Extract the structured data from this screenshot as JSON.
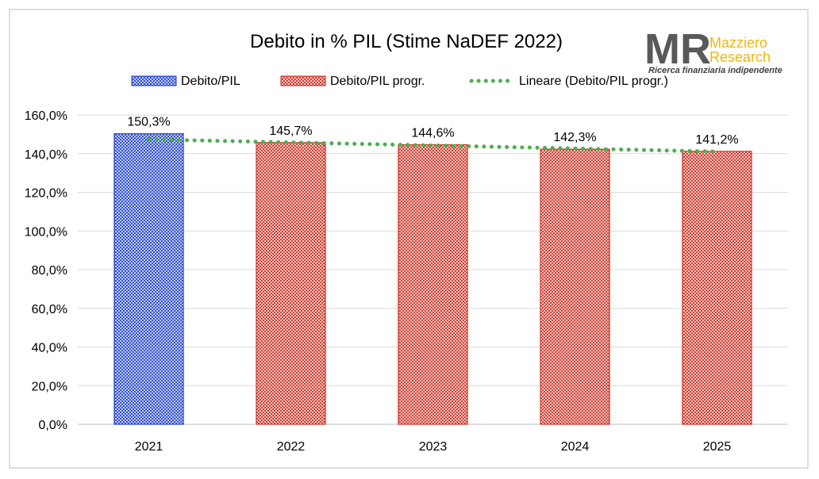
{
  "chart_data": {
    "type": "bar",
    "title": "Debito in % PIL (Stime NaDEF 2022)",
    "categories": [
      "2021",
      "2022",
      "2023",
      "2024",
      "2025"
    ],
    "series": [
      {
        "name": "Debito/PIL",
        "values": [
          150.3,
          null,
          null,
          null,
          null
        ],
        "color": "#1f3fd6"
      },
      {
        "name": "Debito/PIL progr.",
        "values": [
          null,
          145.7,
          144.6,
          142.3,
          141.2
        ],
        "color": "#d62d20"
      }
    ],
    "trendline": {
      "name": "Lineare (Debito/PIL progr.)",
      "color": "#4caf50"
    },
    "data_labels": [
      "150,3%",
      "145,7%",
      "144,6%",
      "142,3%",
      "141,2%"
    ],
    "yticks": [
      "0,0%",
      "20,0%",
      "40,0%",
      "60,0%",
      "80,0%",
      "100,0%",
      "120,0%",
      "140,0%",
      "160,0%"
    ],
    "ylim": [
      0,
      160
    ],
    "grid": true,
    "legend": "top"
  },
  "logo": {
    "mark": "MR",
    "line1": "Mazziero",
    "line2": "Research",
    "tagline": "Ricerca finanziaria indipendente"
  }
}
